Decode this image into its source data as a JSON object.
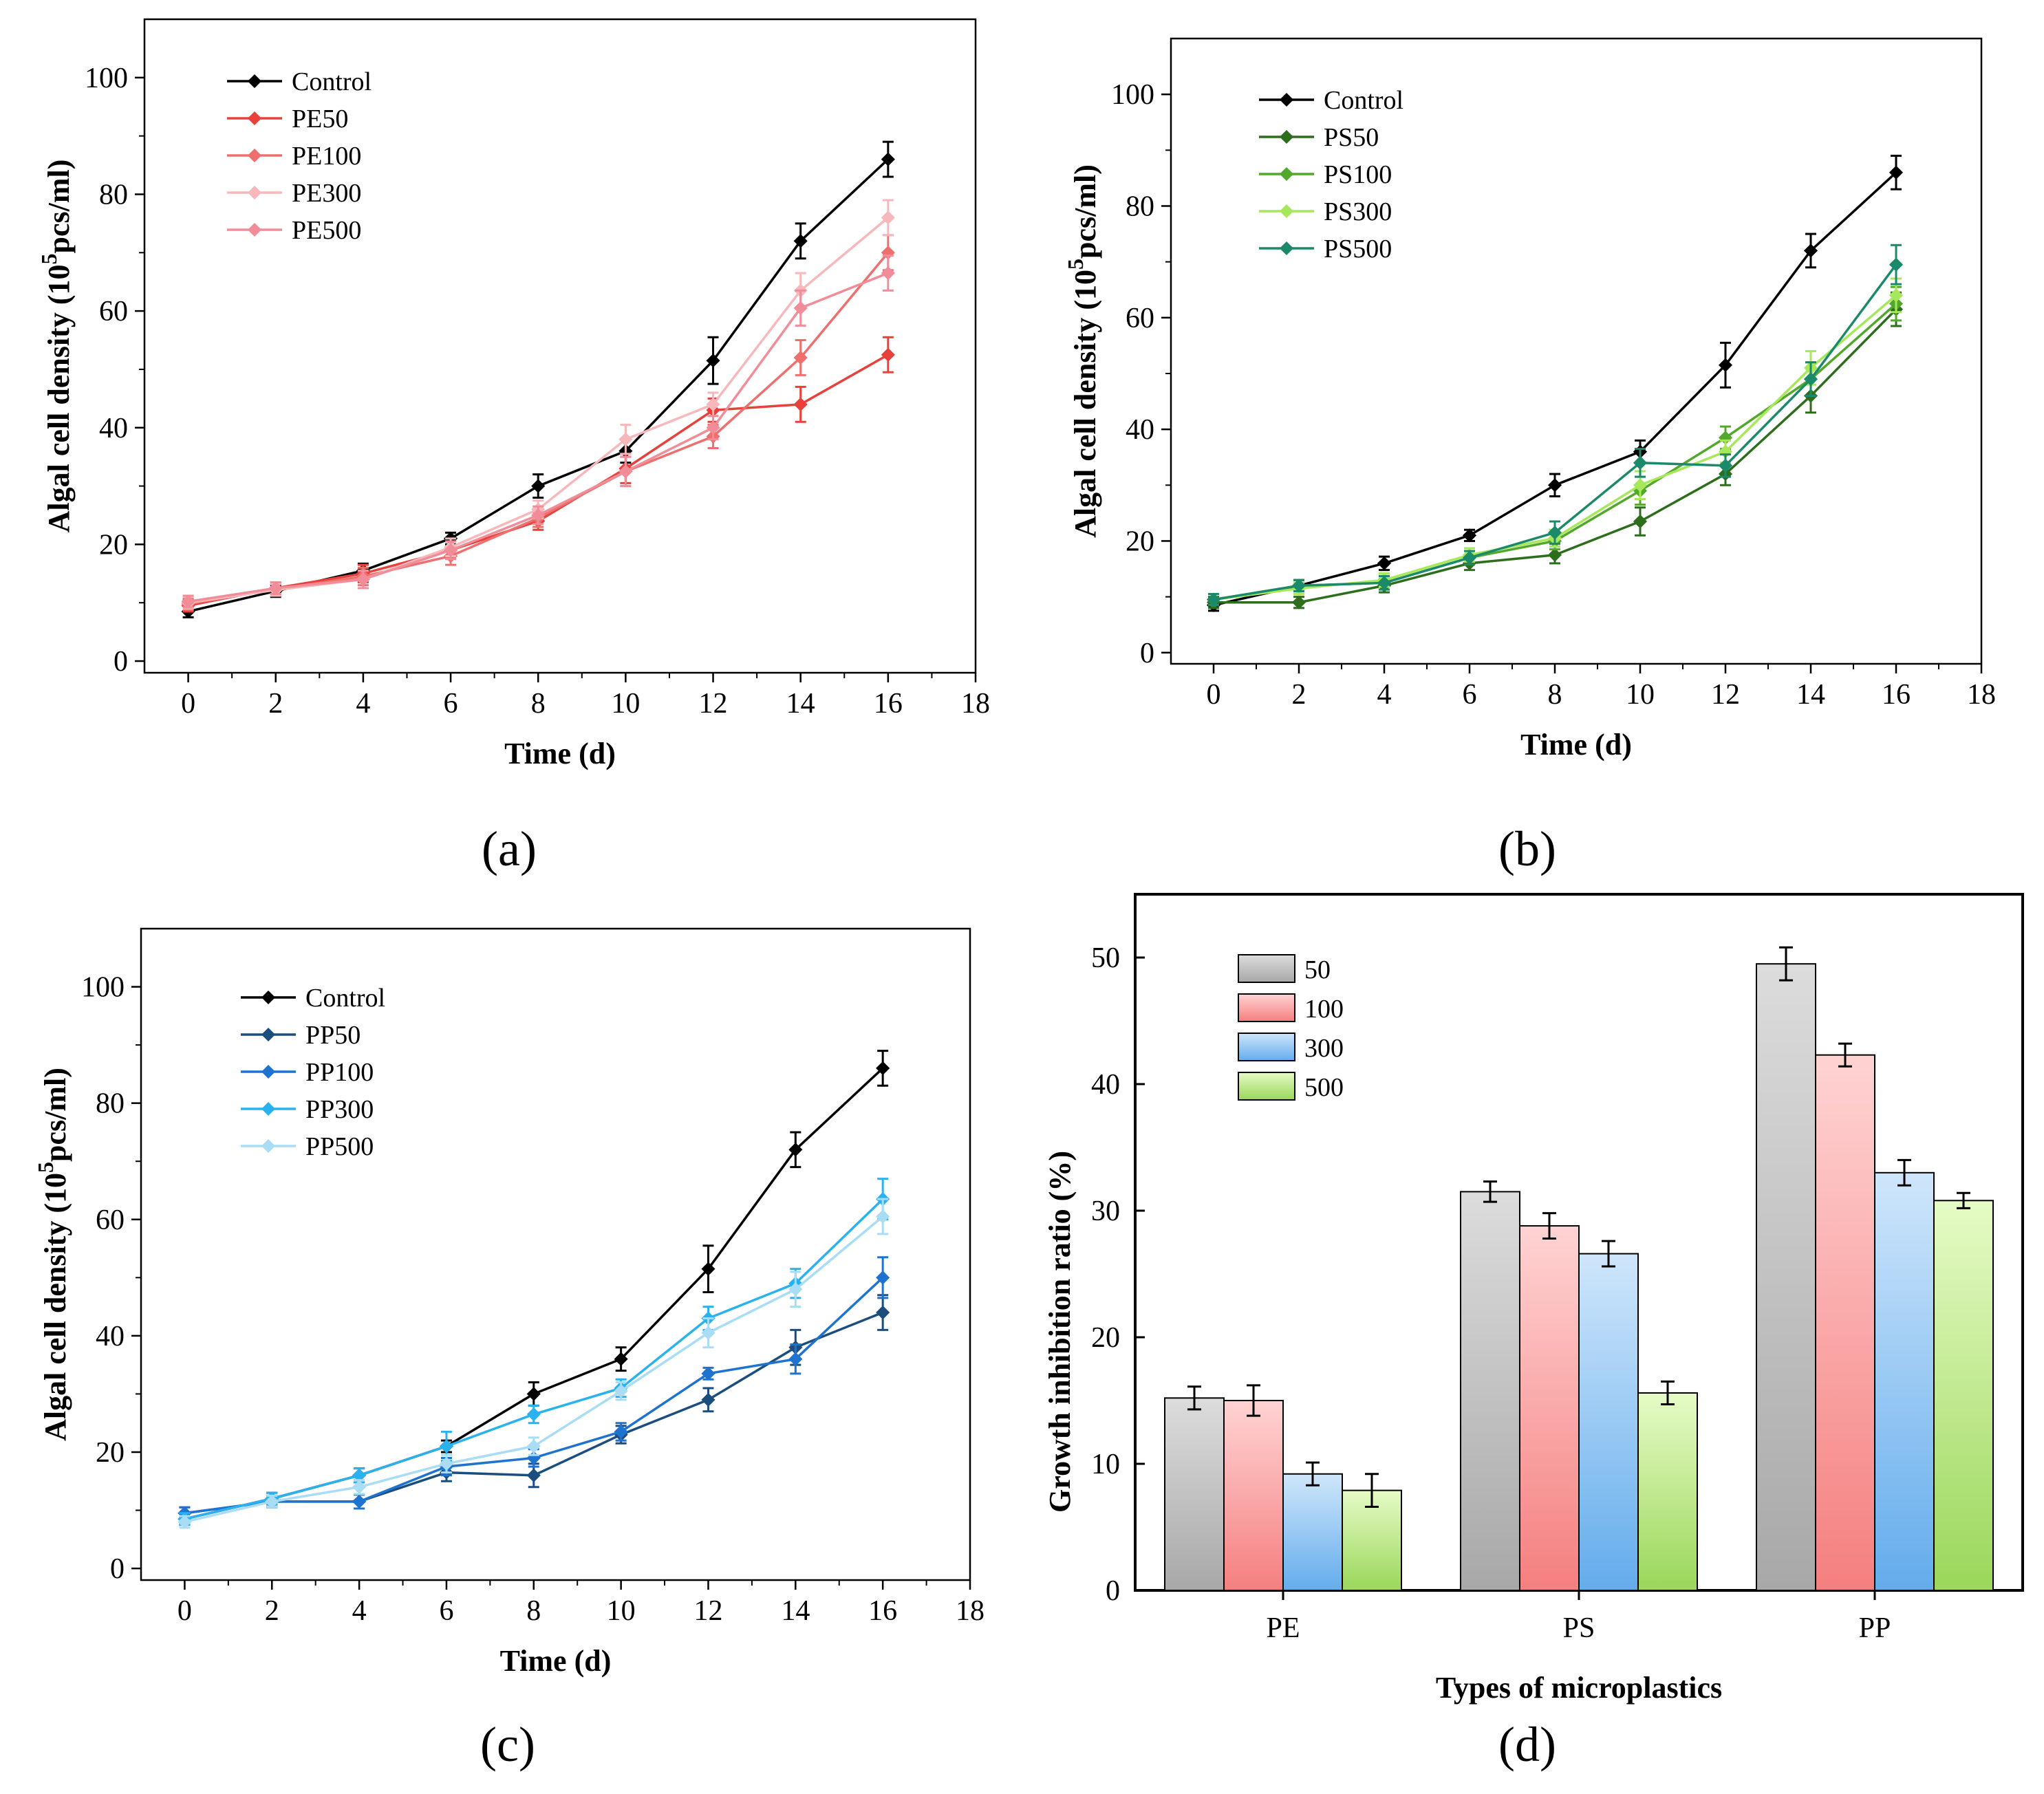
{
  "figure": {
    "panels": [
      "(a)",
      "(b)",
      "(c)",
      "(d)"
    ]
  },
  "chart_data": [
    {
      "type": "line",
      "id": "a",
      "panel_label": "(a)",
      "title": "",
      "xlabel": "Time (d)",
      "ylabel_main": "Algal cell density (10",
      "ylabel_sup": "5",
      "ylabel_tail": "pcs/ml)",
      "xlim": [
        -1,
        18
      ],
      "ylim": [
        -2,
        110
      ],
      "xticks": [
        0,
        2,
        4,
        6,
        8,
        10,
        12,
        14,
        16,
        18
      ],
      "yticks": [
        0,
        20,
        40,
        60,
        80,
        100
      ],
      "x": [
        0,
        2,
        4,
        6,
        8,
        10,
        12,
        14,
        16
      ],
      "series": [
        {
          "name": "Control",
          "color": "#000000",
          "values": [
            8.5,
            12,
            15.5,
            21,
            30,
            36,
            51.5,
            72,
            86
          ],
          "err": [
            1,
            1,
            1.2,
            1,
            2,
            2,
            4,
            3,
            3
          ]
        },
        {
          "name": "PE50",
          "color": "#e8403a",
          "values": [
            9.5,
            12.5,
            15,
            19,
            24,
            33,
            43,
            44,
            52.5
          ],
          "err": [
            1,
            1,
            1.5,
            1.5,
            1.5,
            2.5,
            2,
            3,
            3
          ]
        },
        {
          "name": "PE100",
          "color": "#ef6e6e",
          "values": [
            9.8,
            12.3,
            14.5,
            18,
            24.5,
            32.5,
            38.5,
            52,
            70
          ],
          "err": [
            1,
            1,
            1.5,
            1.5,
            1.5,
            2.5,
            2,
            3,
            3
          ]
        },
        {
          "name": "PE300",
          "color": "#f7b8bc",
          "values": [
            10,
            12.2,
            14,
            19.5,
            26,
            38,
            44,
            63.5,
            76
          ],
          "err": [
            1,
            1,
            1.5,
            1.5,
            1.5,
            2.5,
            2,
            3,
            3
          ]
        },
        {
          "name": "PE500",
          "color": "#f08d98",
          "values": [
            10.2,
            12.5,
            14,
            19,
            25,
            32.5,
            40,
            60.5,
            66.5
          ],
          "err": [
            1,
            1,
            1.5,
            1.5,
            1.5,
            2.5,
            2,
            3,
            3
          ]
        }
      ]
    },
    {
      "type": "line",
      "id": "b",
      "panel_label": "(b)",
      "title": "",
      "xlabel": "Time (d)",
      "ylabel_main": "Algal cell density (10",
      "ylabel_sup": "5",
      "ylabel_tail": "pcs/ml)",
      "xlim": [
        -1,
        18
      ],
      "ylim": [
        -2,
        110
      ],
      "xticks": [
        0,
        2,
        4,
        6,
        8,
        10,
        12,
        14,
        16,
        18
      ],
      "yticks": [
        0,
        20,
        40,
        60,
        80,
        100
      ],
      "x": [
        0,
        2,
        4,
        6,
        8,
        10,
        12,
        14,
        16
      ],
      "series": [
        {
          "name": "Control",
          "color": "#000000",
          "values": [
            8.5,
            12,
            16,
            21,
            30,
            36,
            51.5,
            72,
            86
          ],
          "err": [
            1,
            1,
            1.2,
            1,
            2,
            2,
            4,
            3,
            3
          ]
        },
        {
          "name": "PS50",
          "color": "#2d6e1c",
          "values": [
            9,
            9,
            12,
            16,
            17.5,
            23.5,
            32,
            46,
            61.5
          ],
          "err": [
            1,
            1,
            1.2,
            1.2,
            1.5,
            2.5,
            2,
            3,
            3
          ]
        },
        {
          "name": "PS100",
          "color": "#52a82a",
          "values": [
            9.5,
            12,
            12.5,
            17,
            20,
            29,
            38.5,
            49,
            62.5
          ],
          "err": [
            1,
            1,
            1.2,
            1.2,
            1.5,
            2.5,
            2,
            3,
            3
          ]
        },
        {
          "name": "PS300",
          "color": "#a6e85a",
          "values": [
            9.5,
            11.5,
            13,
            17.5,
            20.5,
            30,
            36,
            51,
            64
          ],
          "err": [
            1,
            1,
            1.2,
            1.2,
            1.5,
            2.5,
            2,
            3,
            3
          ]
        },
        {
          "name": "PS500",
          "color": "#1a8a6a",
          "values": [
            9.5,
            12,
            12.5,
            17,
            21.5,
            34,
            33.5,
            49,
            69.5
          ],
          "err": [
            1,
            1,
            1.2,
            1.2,
            2,
            2.5,
            2,
            3,
            3.5
          ]
        }
      ]
    },
    {
      "type": "line",
      "id": "c",
      "panel_label": "(c)",
      "title": "",
      "xlabel": "Time (d)",
      "ylabel_main": "Algal cell density (10",
      "ylabel_sup": "5",
      "ylabel_tail": "pcs/ml)",
      "xlim": [
        -1,
        18
      ],
      "ylim": [
        -2,
        110
      ],
      "xticks": [
        0,
        2,
        4,
        6,
        8,
        10,
        12,
        14,
        16,
        18
      ],
      "yticks": [
        0,
        20,
        40,
        60,
        80,
        100
      ],
      "x": [
        0,
        2,
        4,
        6,
        8,
        10,
        12,
        14,
        16
      ],
      "series": [
        {
          "name": "Control",
          "color": "#000000",
          "values": [
            8.5,
            12,
            16,
            21,
            30,
            36,
            51.5,
            72,
            86
          ],
          "err": [
            1,
            1,
            1.2,
            1,
            2,
            2,
            4,
            3,
            3
          ]
        },
        {
          "name": "PP50",
          "color": "#1b4e7e",
          "values": [
            9.5,
            11.5,
            11.5,
            16.5,
            16,
            23,
            29,
            38,
            44
          ],
          "err": [
            1,
            1,
            1.2,
            1.5,
            2,
            1.5,
            2,
            3,
            3
          ]
        },
        {
          "name": "PP100",
          "color": "#1f73d0",
          "values": [
            9.5,
            11.5,
            11.5,
            17.5,
            19,
            23.5,
            33.5,
            36,
            50
          ],
          "err": [
            1,
            1,
            1.2,
            1.5,
            1.5,
            1.5,
            1,
            2.5,
            3.5
          ]
        },
        {
          "name": "PP300",
          "color": "#29b2ef",
          "values": [
            8.5,
            12,
            16,
            21,
            26.5,
            31,
            43,
            49,
            63.5
          ],
          "err": [
            1,
            1,
            1.2,
            2.5,
            1.5,
            1.5,
            2,
            2.5,
            3.5
          ]
        },
        {
          "name": "PP500",
          "color": "#a9dcf5",
          "values": [
            8,
            11.5,
            14,
            18,
            21,
            30.5,
            40.5,
            48,
            60.5
          ],
          "err": [
            1,
            1,
            1.2,
            1.5,
            1.5,
            1.5,
            2.5,
            3,
            3
          ]
        }
      ]
    },
    {
      "type": "bar",
      "id": "d",
      "panel_label": "(d)",
      "title": "",
      "xlabel": "Types of microplastics",
      "ylabel": "Growth inhibition ratio (%)",
      "ylim": [
        0,
        55
      ],
      "yticks": [
        0,
        10,
        20,
        30,
        40,
        50
      ],
      "categories": [
        "PE",
        "PS",
        "PP"
      ],
      "series": [
        {
          "name": "50",
          "top_color": "#dcdcdc",
          "bottom_color": "#a8a8a8",
          "values": [
            15.2,
            31.5,
            49.5
          ],
          "err": [
            0.9,
            0.8,
            1.3
          ]
        },
        {
          "name": "100",
          "top_color": "#ffd3d3",
          "bottom_color": "#f57f7f",
          "values": [
            15.0,
            28.8,
            42.3
          ],
          "err": [
            1.2,
            1.0,
            0.9
          ]
        },
        {
          "name": "300",
          "top_color": "#cfe6fb",
          "bottom_color": "#63acec",
          "values": [
            9.2,
            26.6,
            33.0
          ],
          "err": [
            0.9,
            1.0,
            1.0
          ]
        },
        {
          "name": "500",
          "top_color": "#e6fbc6",
          "bottom_color": "#9ad75a",
          "values": [
            7.9,
            15.6,
            30.8
          ],
          "err": [
            1.3,
            0.9,
            0.6
          ]
        }
      ]
    }
  ]
}
